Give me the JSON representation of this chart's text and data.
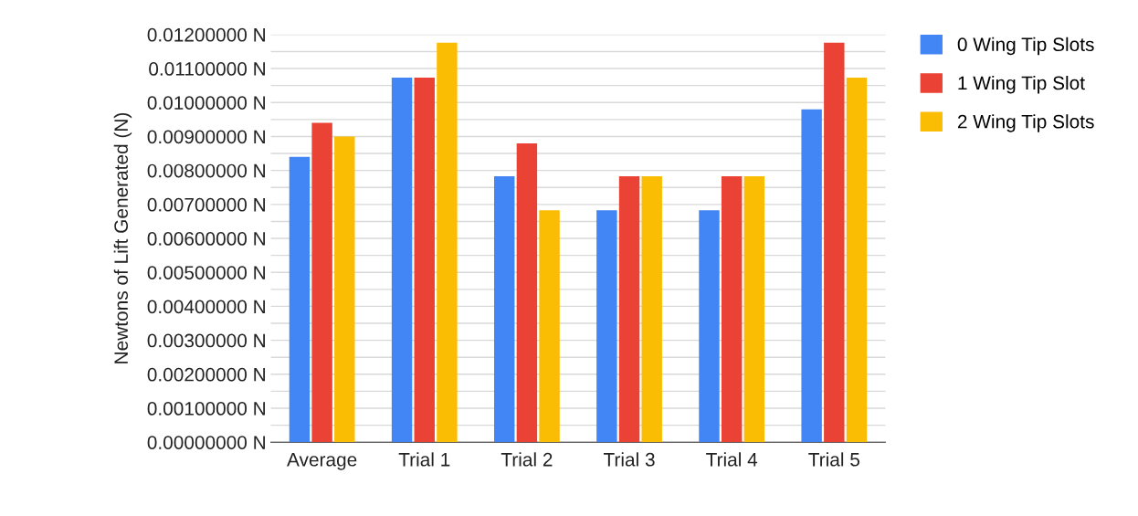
{
  "chart_data": {
    "type": "bar",
    "ylabel": "Newtons of Lift Generated (N)",
    "categories": [
      "Average",
      "Trial 1",
      "Trial 2",
      "Trial 3",
      "Trial 4",
      "Trial 5"
    ],
    "series": [
      {
        "name": "0 Wing Tip Slots",
        "color": "#4285f4",
        "values": [
          0.0084,
          0.01073,
          0.00783,
          0.00683,
          0.00683,
          0.0098
        ]
      },
      {
        "name": "1 Wing Tip Slot",
        "color": "#ea4335",
        "values": [
          0.0094,
          0.01073,
          0.0088,
          0.00783,
          0.00783,
          0.01176
        ]
      },
      {
        "name": "2 Wing Tip Slots",
        "color": "#fbbc04",
        "values": [
          0.009,
          0.01176,
          0.00683,
          0.00783,
          0.00783,
          0.01073
        ]
      }
    ],
    "ylim": [
      0,
      0.012
    ],
    "yticks": [
      {
        "value": 0,
        "label": "0.00000000 N"
      },
      {
        "value": 0.0005,
        "label": null
      },
      {
        "value": 0.001,
        "label": "0.00100000 N"
      },
      {
        "value": 0.0015,
        "label": null
      },
      {
        "value": 0.002,
        "label": "0.00200000 N"
      },
      {
        "value": 0.0025,
        "label": null
      },
      {
        "value": 0.003,
        "label": "0.00300000 N"
      },
      {
        "value": 0.0035,
        "label": null
      },
      {
        "value": 0.004,
        "label": "0.00400000 N"
      },
      {
        "value": 0.0045,
        "label": null
      },
      {
        "value": 0.005,
        "label": "0.00500000 N"
      },
      {
        "value": 0.0055,
        "label": null
      },
      {
        "value": 0.006,
        "label": "0.00600000 N"
      },
      {
        "value": 0.0065,
        "label": null
      },
      {
        "value": 0.007,
        "label": "0.00700000 N"
      },
      {
        "value": 0.0075,
        "label": null
      },
      {
        "value": 0.008,
        "label": "0.00800000 N"
      },
      {
        "value": 0.0085,
        "label": null
      },
      {
        "value": 0.009,
        "label": "0.00900000 N"
      },
      {
        "value": 0.0095,
        "label": null
      },
      {
        "value": 0.01,
        "label": "0.01000000 N"
      },
      {
        "value": 0.0105,
        "label": null
      },
      {
        "value": 0.011,
        "label": "0.01100000 N"
      },
      {
        "value": 0.0115,
        "label": null
      },
      {
        "value": 0.012,
        "label": "0.01200000 N"
      }
    ],
    "grid": "y",
    "legend": "top right"
  }
}
